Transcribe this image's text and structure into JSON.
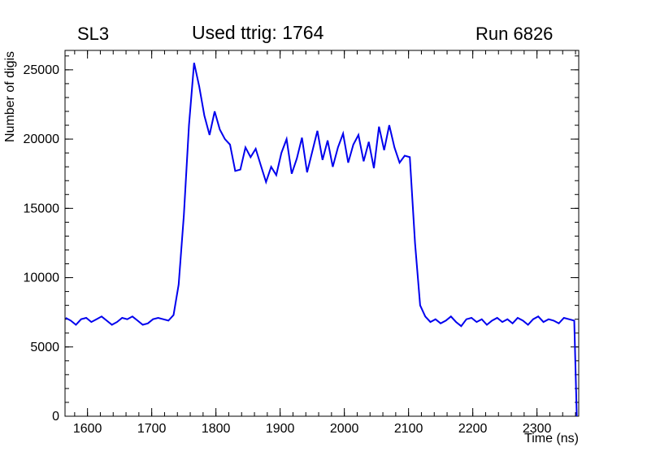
{
  "header": {
    "left_title": "SL3",
    "center_title": "Used ttrig: 1764",
    "right_title": "Run 6826"
  },
  "axes": {
    "x_label": "Time (ns)",
    "y_label": "Number of digis"
  },
  "chart_data": {
    "type": "line",
    "title": "Used ttrig: 1764",
    "xlabel": "Time (ns)",
    "ylabel": "Number of digis",
    "xlim": [
      1565,
      2365
    ],
    "ylim": [
      0,
      26400
    ],
    "x_ticks": [
      1600,
      1700,
      1800,
      1900,
      2000,
      2100,
      2200,
      2300
    ],
    "y_ticks": [
      0,
      5000,
      10000,
      15000,
      20000,
      25000
    ],
    "x_minor_step": 20,
    "y_minor_step": 1000,
    "grid": false,
    "legend": "none",
    "line_color": "#0000ee",
    "frame_color": "#000000",
    "x": [
      1566,
      1574,
      1582,
      1590,
      1598,
      1606,
      1614,
      1622,
      1630,
      1638,
      1646,
      1654,
      1662,
      1670,
      1678,
      1686,
      1694,
      1702,
      1710,
      1718,
      1726,
      1734,
      1742,
      1750,
      1758,
      1766,
      1774,
      1782,
      1790,
      1798,
      1806,
      1814,
      1822,
      1830,
      1838,
      1846,
      1854,
      1862,
      1870,
      1878,
      1886,
      1894,
      1902,
      1910,
      1918,
      1926,
      1934,
      1942,
      1950,
      1958,
      1966,
      1974,
      1982,
      1990,
      1998,
      2006,
      2014,
      2022,
      2030,
      2038,
      2046,
      2054,
      2062,
      2070,
      2078,
      2086,
      2094,
      2102,
      2110,
      2118,
      2126,
      2134,
      2142,
      2150,
      2158,
      2166,
      2174,
      2182,
      2190,
      2198,
      2206,
      2214,
      2222,
      2230,
      2238,
      2246,
      2254,
      2262,
      2270,
      2278,
      2286,
      2294,
      2302,
      2310,
      2318,
      2326,
      2334,
      2342,
      2350,
      2358,
      2362
    ],
    "y": [
      7100,
      6900,
      6600,
      7000,
      7100,
      6800,
      7000,
      7200,
      6900,
      6600,
      6800,
      7100,
      7000,
      7200,
      6900,
      6600,
      6700,
      7000,
      7100,
      7000,
      6900,
      7300,
      9500,
      14500,
      21000,
      25500,
      23800,
      21700,
      20300,
      22000,
      20700,
      20000,
      19600,
      17700,
      17800,
      19400,
      18700,
      19300,
      18100,
      16900,
      18000,
      17400,
      19000,
      20000,
      17500,
      18600,
      20100,
      17600,
      19100,
      20600,
      18500,
      19900,
      18000,
      19400,
      20400,
      18300,
      19600,
      20300,
      18400,
      19800,
      17900,
      20900,
      19200,
      21000,
      19400,
      18300,
      18800,
      18700,
      12500,
      8000,
      7200,
      6800,
      7000,
      6700,
      6900,
      7200,
      6800,
      6500,
      7000,
      7100,
      6800,
      7000,
      6600,
      6900,
      7100,
      6800,
      7000,
      6700,
      7100,
      6900,
      6600,
      7000,
      7200,
      6800,
      7000,
      6900,
      6700,
      7100,
      7000,
      6900,
      0
    ]
  }
}
